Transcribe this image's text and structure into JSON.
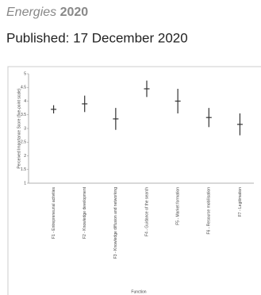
{
  "header": {
    "journal": "Energies",
    "year": "2020",
    "published": "Published: 17 December 2020"
  },
  "chart_data": {
    "type": "errorbar",
    "y_label": "Perceived Importance Score (five-point scale)",
    "x_label": "Function",
    "categories": [
      "F1 - Entrepreneurial activities",
      "F2 - Knowledge development",
      "F3 - Knowledge diffusion and networking",
      "F4 - Guidance of the search",
      "F5 - Market formation",
      "F6 - Resource mobilisation",
      "F7 - Legitimation"
    ],
    "values": [
      3.7,
      3.9,
      3.35,
      4.45,
      4.0,
      3.4,
      3.15
    ],
    "errors": [
      0.15,
      0.3,
      0.4,
      0.3,
      0.45,
      0.35,
      0.4
    ],
    "color": "#333333",
    "ylim": [
      1,
      5
    ],
    "yticks": [
      1,
      1.5,
      2,
      2.5,
      3,
      3.5,
      4,
      4.5,
      5
    ],
    "grid": false
  }
}
